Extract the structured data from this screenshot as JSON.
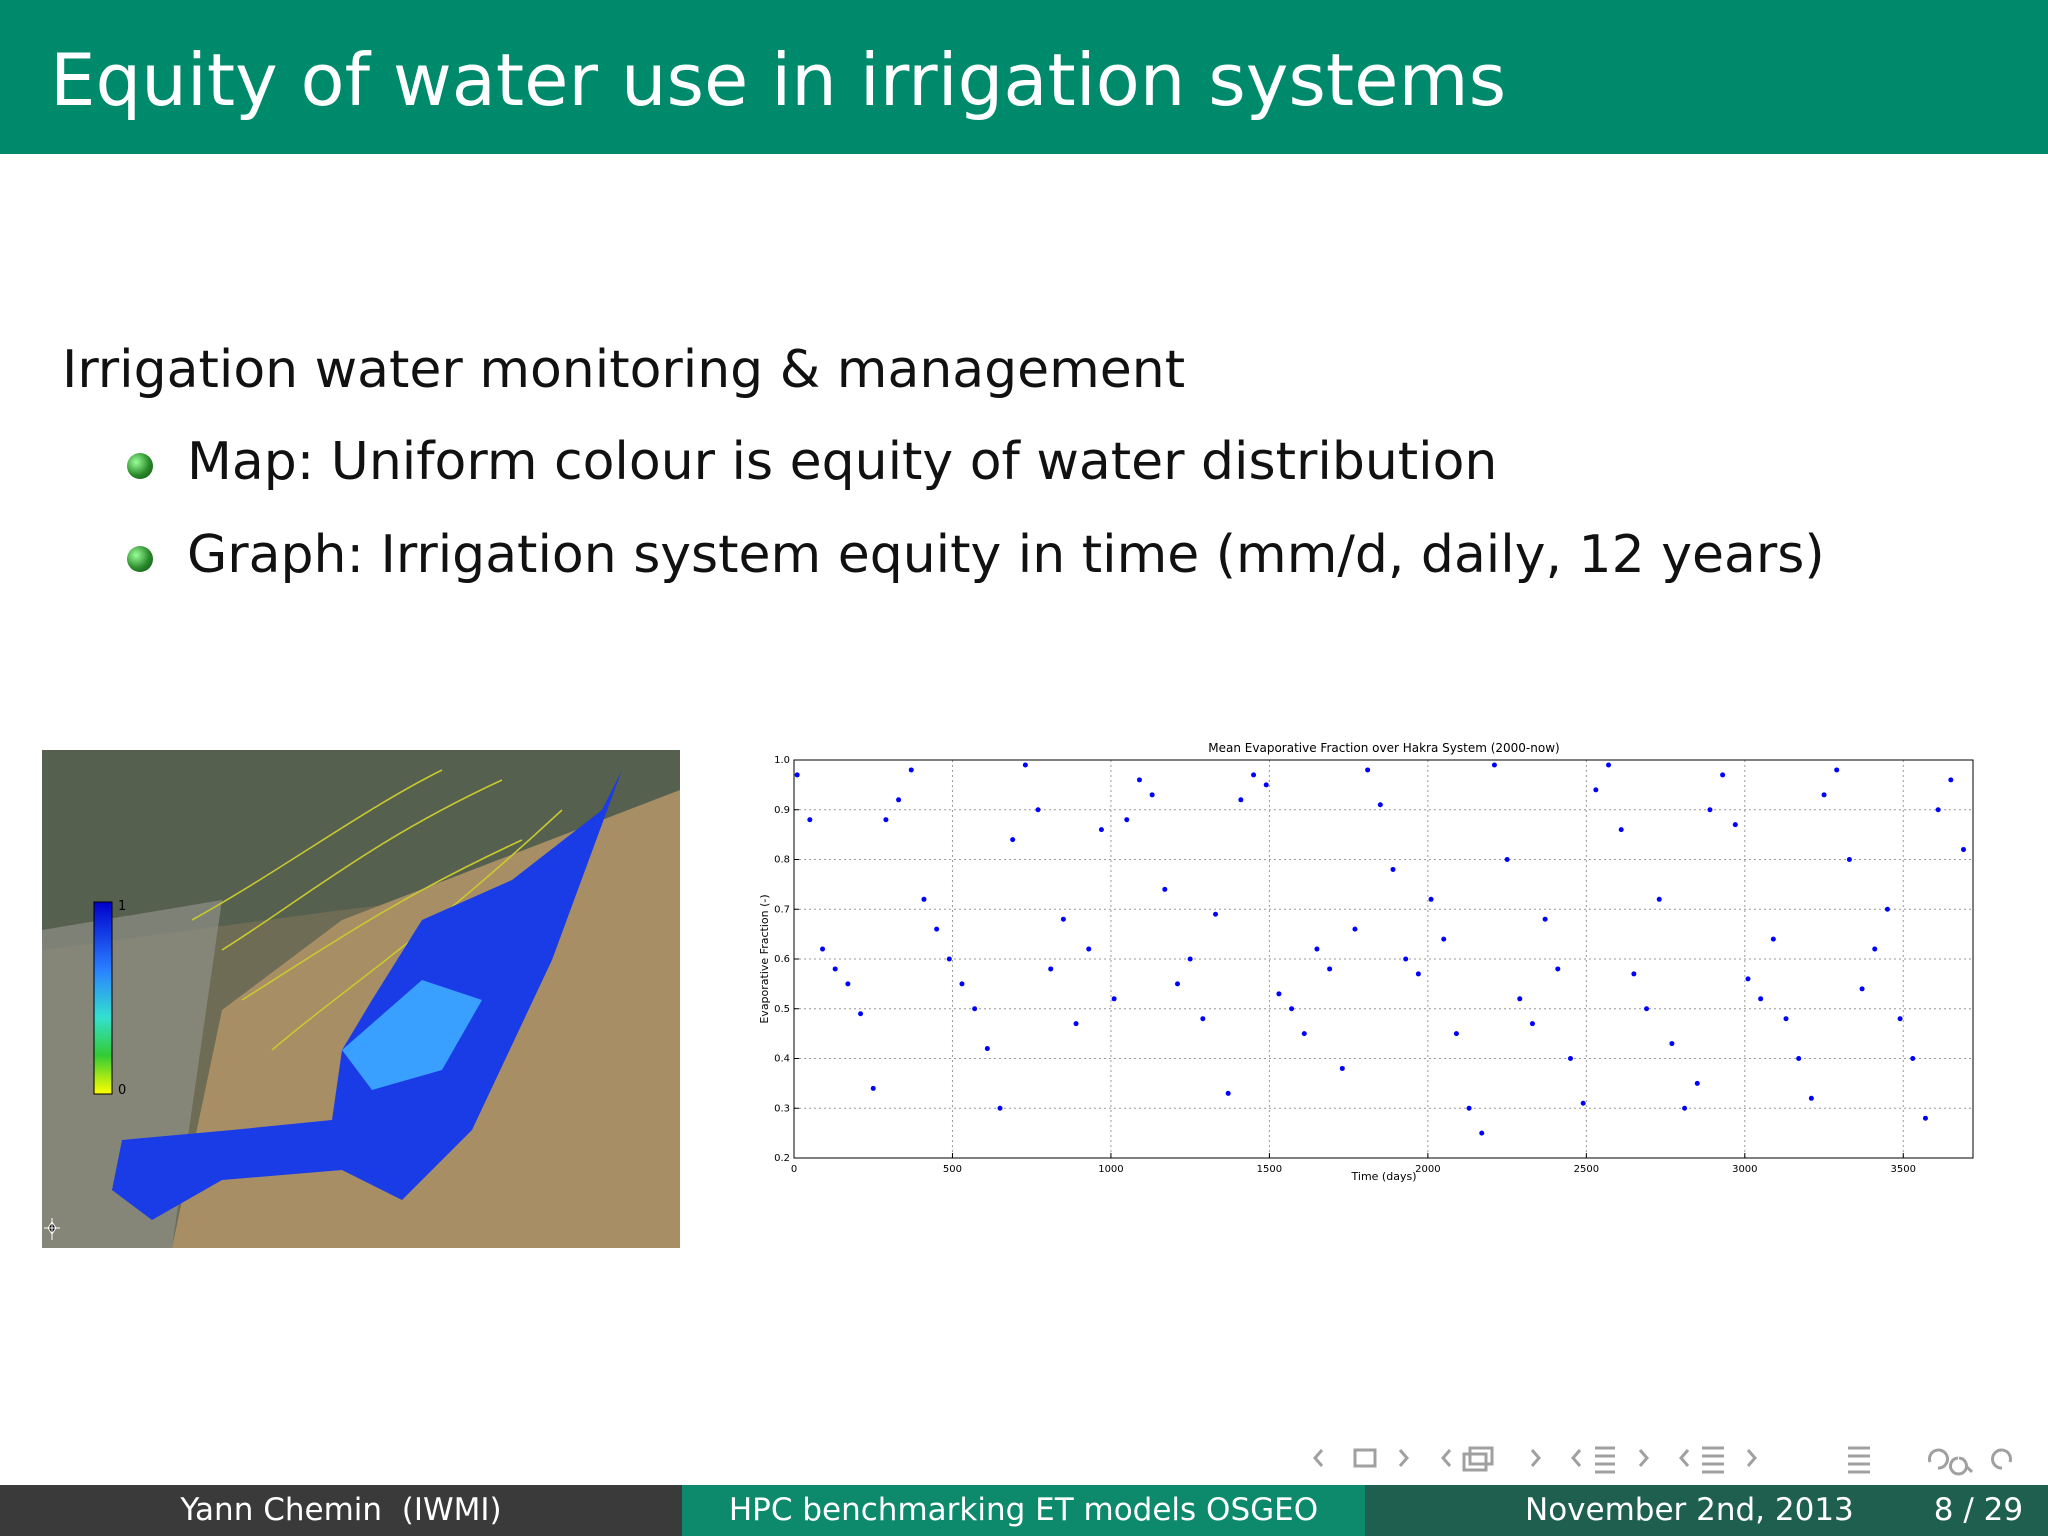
{
  "header": {
    "title": "Equity of water use in irrigation systems"
  },
  "body": {
    "heading": "Irrigation water monitoring & management",
    "bullets": [
      "Map: Uniform colour is equity of water distribution",
      "Graph: Irrigation system equity in time (mm/d, daily, 12 years)"
    ]
  },
  "map": {
    "colorbar_labels": [
      "1",
      "0"
    ]
  },
  "chart_data": {
    "type": "scatter",
    "title": "Mean Evaporative Fraction over Hakra System (2000-now)",
    "x_label": "Time (days)",
    "y_label": "Evaporative Fraction (-)",
    "x": [
      10,
      50,
      90,
      130,
      170,
      210,
      250,
      290,
      330,
      370,
      410,
      450,
      490,
      530,
      570,
      610,
      650,
      690,
      730,
      770,
      810,
      850,
      890,
      930,
      970,
      1010,
      1050,
      1090,
      1130,
      1170,
      1210,
      1250,
      1290,
      1330,
      1370,
      1410,
      1450,
      1490,
      1530,
      1570,
      1610,
      1650,
      1690,
      1730,
      1770,
      1810,
      1850,
      1890,
      1930,
      1970,
      2010,
      2050,
      2090,
      2130,
      2170,
      2210,
      2250,
      2290,
      2330,
      2370,
      2410,
      2450,
      2490,
      2530,
      2570,
      2610,
      2650,
      2690,
      2730,
      2770,
      2810,
      2850,
      2890,
      2930,
      2970,
      3010,
      3050,
      3090,
      3130,
      3170,
      3210,
      3250,
      3290,
      3330,
      3370,
      3410,
      3450,
      3490,
      3530,
      3570,
      3610,
      3650,
      3690
    ],
    "values": [
      0.97,
      0.88,
      0.62,
      0.58,
      0.55,
      0.49,
      0.34,
      0.88,
      0.92,
      0.98,
      0.72,
      0.66,
      0.6,
      0.55,
      0.5,
      0.42,
      0.3,
      0.84,
      0.99,
      0.9,
      0.58,
      0.68,
      0.47,
      0.62,
      0.86,
      0.52,
      0.88,
      0.96,
      0.93,
      0.74,
      0.55,
      0.6,
      0.48,
      0.69,
      0.33,
      0.92,
      0.97,
      0.95,
      0.53,
      0.5,
      0.45,
      0.62,
      0.58,
      0.38,
      0.66,
      0.98,
      0.91,
      0.78,
      0.6,
      0.57,
      0.72,
      0.64,
      0.45,
      0.3,
      0.25,
      0.99,
      0.8,
      0.52,
      0.47,
      0.68,
      0.58,
      0.4,
      0.31,
      0.94,
      0.99,
      0.86,
      0.57,
      0.5,
      0.72,
      0.43,
      0.3,
      0.35,
      0.9,
      0.97,
      0.87,
      0.56,
      0.52,
      0.64,
      0.48,
      0.4,
      0.32,
      0.93,
      0.98,
      0.8,
      0.54,
      0.62,
      0.7,
      0.48,
      0.4,
      0.28,
      0.9,
      0.96,
      0.82
    ],
    "color": "#0000ff",
    "xlim": [
      0,
      3720
    ],
    "ylim": [
      0.2,
      1.0
    ],
    "xticks": [
      0,
      500,
      1000,
      1500,
      2000,
      2500,
      3000,
      3500
    ],
    "yticks": [
      0.2,
      0.3,
      0.4,
      0.5,
      0.6,
      0.7,
      0.8,
      0.9,
      {
        "value": 1.0,
        "label": "1.0"
      }
    ],
    "grid": true
  },
  "footer": {
    "author": "Yann Chemin  (IWMI)",
    "title": "HPC benchmarking ET models OSGEO",
    "date": "November 2nd, 2013",
    "page": "8 / 29"
  }
}
